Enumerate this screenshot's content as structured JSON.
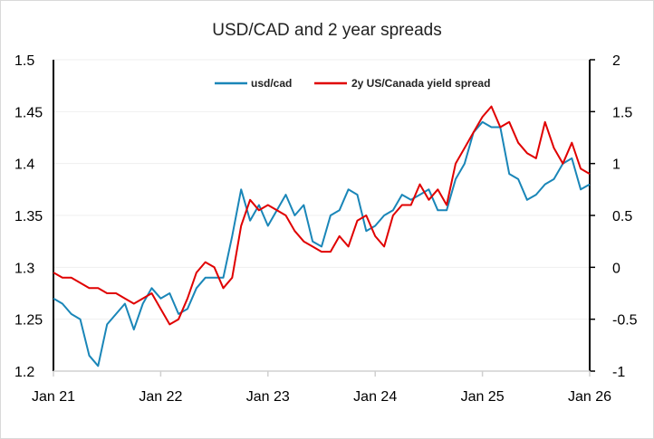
{
  "chart_data": {
    "type": "line",
    "title": "USD/CAD and 2 year spreads",
    "xlabel": "",
    "ylabel": "",
    "x_ticks": [
      "Jan 21",
      "Jan 22",
      "Jan 23",
      "Jan 24",
      "Jan 25",
      "Jan 26"
    ],
    "y_left": {
      "range": [
        1.2,
        1.5
      ],
      "ticks": [
        "1.2",
        "1.25",
        "1.3",
        "1.35",
        "1.4",
        "1.45",
        "1.5"
      ]
    },
    "y_right": {
      "range": [
        -1,
        2
      ],
      "ticks": [
        "-1",
        "-0.5",
        "0",
        "0.5",
        "1",
        "1.5",
        "2"
      ]
    },
    "grid": true,
    "legend_position": "top-center",
    "x": [
      "2021-01",
      "2021-02",
      "2021-03",
      "2021-04",
      "2021-05",
      "2021-06",
      "2021-07",
      "2021-08",
      "2021-09",
      "2021-10",
      "2021-11",
      "2021-12",
      "2022-01",
      "2022-02",
      "2022-03",
      "2022-04",
      "2022-05",
      "2022-06",
      "2022-07",
      "2022-08",
      "2022-09",
      "2022-10",
      "2022-11",
      "2022-12",
      "2023-01",
      "2023-02",
      "2023-03",
      "2023-04",
      "2023-05",
      "2023-06",
      "2023-07",
      "2023-08",
      "2023-09",
      "2023-10",
      "2023-11",
      "2023-12",
      "2024-01",
      "2024-02",
      "2024-03",
      "2024-04",
      "2024-05",
      "2024-06",
      "2024-07",
      "2024-08",
      "2024-09",
      "2024-10",
      "2024-11",
      "2024-12",
      "2025-01",
      "2025-02",
      "2025-03",
      "2025-04",
      "2025-05",
      "2025-06",
      "2025-07",
      "2025-08",
      "2025-09",
      "2025-10",
      "2025-11",
      "2025-12",
      "2026-01"
    ],
    "series": [
      {
        "name": "usd/cad",
        "axis": "left",
        "color": "#1a86b8",
        "values": [
          1.27,
          1.265,
          1.255,
          1.25,
          1.215,
          1.205,
          1.245,
          1.255,
          1.265,
          1.24,
          1.265,
          1.28,
          1.27,
          1.275,
          1.255,
          1.26,
          1.28,
          1.29,
          1.29,
          1.29,
          1.33,
          1.375,
          1.345,
          1.36,
          1.34,
          1.355,
          1.37,
          1.35,
          1.36,
          1.325,
          1.32,
          1.35,
          1.355,
          1.375,
          1.37,
          1.335,
          1.34,
          1.35,
          1.355,
          1.37,
          1.365,
          1.37,
          1.375,
          1.355,
          1.355,
          1.385,
          1.4,
          1.43,
          1.44,
          1.435,
          1.435,
          1.39,
          1.385,
          1.365,
          1.37,
          1.38,
          1.385,
          1.4,
          1.405,
          1.375,
          1.38
        ]
      },
      {
        "name": "2y US/Canada yield spread",
        "axis": "right",
        "color": "#e00000",
        "values": [
          -0.05,
          -0.1,
          -0.1,
          -0.15,
          -0.2,
          -0.2,
          -0.25,
          -0.25,
          -0.3,
          -0.35,
          -0.3,
          -0.25,
          -0.4,
          -0.55,
          -0.5,
          -0.3,
          -0.05,
          0.05,
          0.0,
          -0.2,
          -0.1,
          0.4,
          0.65,
          0.55,
          0.6,
          0.55,
          0.5,
          0.35,
          0.25,
          0.2,
          0.15,
          0.15,
          0.3,
          0.2,
          0.45,
          0.5,
          0.3,
          0.2,
          0.5,
          0.6,
          0.6,
          0.8,
          0.65,
          0.75,
          0.6,
          1.0,
          1.15,
          1.3,
          1.45,
          1.55,
          1.35,
          1.4,
          1.2,
          1.1,
          1.05,
          1.4,
          1.15,
          1.0,
          1.2,
          0.95,
          0.9
        ]
      }
    ]
  }
}
